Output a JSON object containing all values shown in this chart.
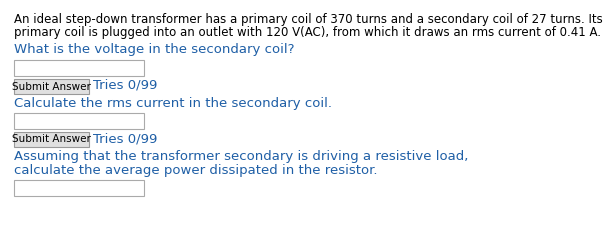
{
  "bg_color": "#ffffff",
  "body_text_line1": "An ideal step-down transformer has a primary coil of 370 turns and a secondary coil of 27 turns. Its",
  "body_text_line2": "primary coil is plugged into an outlet with 120 V(AC), from which it draws an rms current of 0.41 A.",
  "body_color": "#000000",
  "body_fontsize": 8.5,
  "q1_text": "What is the voltage in the secondary coil?",
  "q2_text": "Calculate the rms current in the secondary coil.",
  "q3_text_line1": "Assuming that the transformer secondary is driving a resistive load,",
  "q3_text_line2": "calculate the average power dissipated in the resistor.",
  "q_color": "#1f5fa6",
  "q_fontsize": 9.5,
  "submit_label": "Submit Answer",
  "tries_label": "Tries 0/99",
  "submit_fontsize": 7.5,
  "tries_fontsize": 9.5,
  "tries_color": "#1f5fa6",
  "box_color": "#ffffff",
  "box_edge_color": "#aaaaaa",
  "btn_face_color": "#e0e0e0",
  "btn_edge_color": "#999999"
}
